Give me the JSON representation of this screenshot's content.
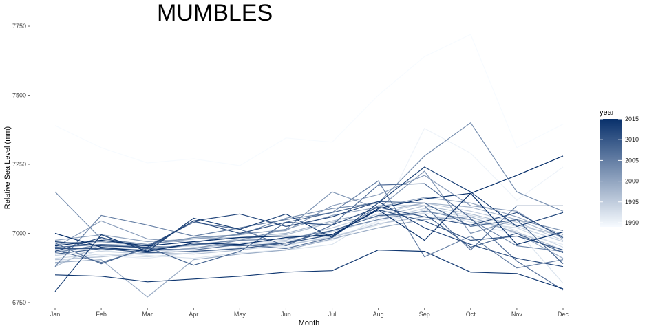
{
  "chart_data": {
    "type": "line",
    "title": "MUMBLES",
    "xlabel": "Month",
    "ylabel": "Relative Sea Level (mm)",
    "categories": [
      "Jan",
      "Feb",
      "Mar",
      "Apr",
      "May",
      "Jun",
      "Jul",
      "Aug",
      "Sep",
      "Oct",
      "Nov",
      "Dec"
    ],
    "ylim": [
      6730,
      7770
    ],
    "yticks": [
      6750,
      7000,
      7250,
      7500,
      7750
    ],
    "ytick_labels": [
      "6750",
      "7000",
      "7250",
      "7500",
      "7750"
    ],
    "grid": false,
    "legend": {
      "title": "year",
      "placement": "right",
      "type": "colorbar",
      "range": [
        1989,
        2015
      ],
      "ticks": [
        1990,
        1995,
        2000,
        2005,
        2010,
        2015
      ],
      "tick_labels": [
        "1990",
        "1995",
        "2000",
        "2005",
        "2010",
        "2015"
      ],
      "color_low": "#f7fbff",
      "color_high": "#08306b"
    },
    "series": [
      {
        "year": 1989,
        "values": [
          7390,
          7310,
          7255,
          7270,
          7245,
          7345,
          7330,
          7500,
          7640,
          7720,
          7310,
          7395
        ]
      },
      {
        "year": 1990,
        "values": [
          6930,
          6950,
          6925,
          6945,
          6955,
          6965,
          6985,
          7040,
          7380,
          7290,
          7120,
          7240
        ]
      },
      {
        "year": 1991,
        "values": [
          6900,
          6920,
          6910,
          6930,
          6945,
          6950,
          6975,
          7045,
          7075,
          7030,
          7000,
          6960
        ]
      },
      {
        "year": 1992,
        "values": [
          6890,
          6940,
          6920,
          6910,
          6930,
          6940,
          6960,
          7060,
          7080,
          7060,
          7010,
          6820
        ]
      },
      {
        "year": 1993,
        "values": [
          6910,
          6925,
          6915,
          6930,
          6950,
          6955,
          6990,
          7030,
          7085,
          7040,
          7020,
          6950
        ]
      },
      {
        "year": 1994,
        "values": [
          6920,
          6935,
          6925,
          6950,
          6960,
          6970,
          7005,
          7050,
          7090,
          7065,
          7025,
          6970
        ]
      },
      {
        "year": 1995,
        "values": [
          6935,
          6955,
          6935,
          6945,
          6965,
          6975,
          7020,
          7070,
          7110,
          7080,
          7040,
          6975
        ]
      },
      {
        "year": 1996,
        "values": [
          6905,
          6915,
          6930,
          6925,
          6940,
          6960,
          6985,
          7035,
          7060,
          7050,
          7005,
          6940
        ]
      },
      {
        "year": 1997,
        "values": [
          6880,
          6960,
          6950,
          6955,
          6980,
          6995,
          7040,
          7060,
          7100,
          7070,
          7030,
          6990
        ]
      },
      {
        "year": 1998,
        "values": [
          6960,
          6975,
          6960,
          6980,
          6985,
          7000,
          7045,
          7080,
          7110,
          7095,
          7050,
          6985
        ]
      },
      {
        "year": 1999,
        "values": [
          6895,
          6905,
          6770,
          6905,
          6925,
          6940,
          6980,
          7020,
          7050,
          7060,
          7000,
          6910
        ]
      },
      {
        "year": 2000,
        "values": [
          6975,
          6995,
          6970,
          6980,
          6995,
          7015,
          7065,
          7095,
          7130,
          7110,
          7060,
          6995
        ]
      },
      {
        "year": 2001,
        "values": [
          6950,
          7045,
          6980,
          6965,
          7000,
          7010,
          7100,
          7140,
          7210,
          7100,
          7080,
          6980
        ]
      },
      {
        "year": 2002,
        "values": [
          6965,
          6970,
          6955,
          6945,
          6975,
          7015,
          7150,
          7090,
          7225,
          7000,
          7050,
          7010
        ]
      },
      {
        "year": 2003,
        "values": [
          7150,
          6980,
          6960,
          6985,
          6995,
          7055,
          7090,
          7110,
          7280,
          7400,
          7150,
          7080
        ]
      },
      {
        "year": 2004,
        "values": [
          6930,
          6960,
          6945,
          6960,
          6975,
          6980,
          7010,
          7050,
          7080,
          7050,
          6955,
          6935
        ]
      },
      {
        "year": 2005,
        "values": [
          6880,
          7065,
          7030,
          6990,
          7020,
          7050,
          7075,
          7190,
          6915,
          6990,
          6875,
          6905
        ]
      },
      {
        "year": 2006,
        "values": [
          6940,
          6895,
          6945,
          6940,
          6960,
          6945,
          6985,
          7100,
          7100,
          6940,
          7100,
          7100
        ]
      },
      {
        "year": 2007,
        "values": [
          6950,
          6960,
          6955,
          7040,
          7015,
          6955,
          7030,
          7175,
          7180,
          7055,
          6900,
          6795
        ]
      },
      {
        "year": 2008,
        "values": [
          6965,
          6890,
          6950,
          6885,
          6935,
          7040,
          7075,
          7115,
          7110,
          7025,
          7050,
          6890
        ]
      },
      {
        "year": 2009,
        "values": [
          6925,
          6945,
          6940,
          6960,
          6955,
          6965,
          7010,
          7065,
          7070,
          6950,
          7000,
          6930
        ]
      },
      {
        "year": 2010,
        "values": [
          6945,
          6945,
          6930,
          6935,
          6945,
          6965,
          6995,
          7085,
          7045,
          6975,
          6990,
          6940
        ]
      },
      {
        "year": 2011,
        "values": [
          6935,
          6985,
          6945,
          7045,
          7000,
          7040,
          7030,
          7095,
          7060,
          7030,
          7075,
          6985
        ]
      },
      {
        "year": 2012,
        "values": [
          6970,
          6955,
          6950,
          7045,
          7070,
          7025,
          7060,
          7115,
          7020,
          6960,
          6910,
          6880
        ]
      },
      {
        "year": 2013,
        "values": [
          6790,
          6995,
          6935,
          7055,
          7015,
          7070,
          6985,
          7110,
          7240,
          7150,
          7025,
          7075
        ]
      },
      {
        "year": 2014,
        "values": [
          6850,
          6845,
          6825,
          6835,
          6845,
          6860,
          6865,
          6940,
          6935,
          6860,
          6855,
          6800
        ]
      },
      {
        "year": 2015,
        "values": [
          7000,
          6950,
          6935,
          6965,
          6960,
          6985,
          6995,
          7085,
          6975,
          7145,
          6960,
          7005
        ]
      },
      {
        "year": 2015,
        "values": [
          6955,
          6975,
          6955,
          6970,
          6985,
          6990,
          6990,
          7090,
          7125,
          7145,
          7210,
          7280
        ]
      }
    ]
  }
}
